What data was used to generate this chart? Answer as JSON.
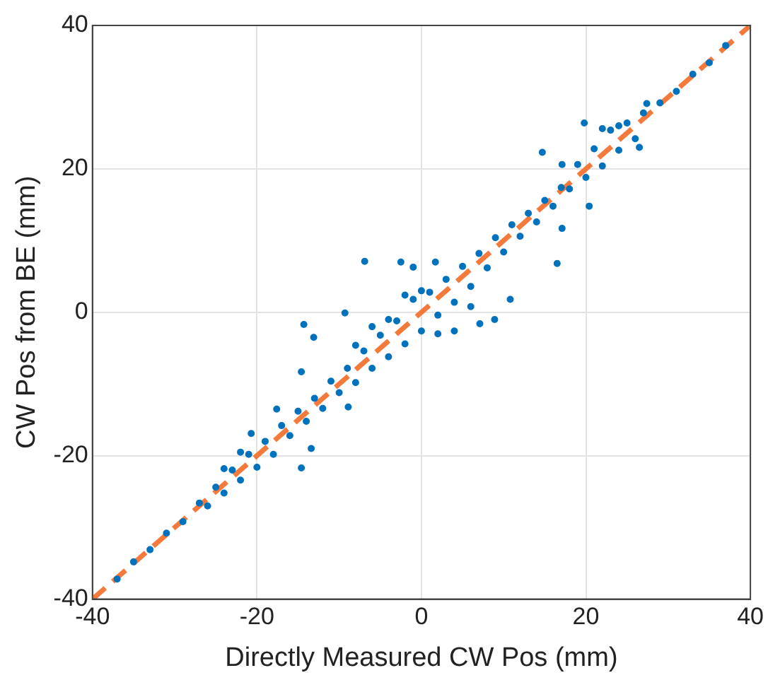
{
  "chart_data": {
    "type": "scatter",
    "xlabel": "Directly Measured CW Pos (mm)",
    "ylabel": "CW Pos from BE (mm)",
    "xlim": [
      -40,
      40
    ],
    "ylim": [
      -40,
      40
    ],
    "xticks": [
      -40,
      -20,
      0,
      20,
      40
    ],
    "yticks": [
      -40,
      -20,
      0,
      20,
      40
    ],
    "grid": true,
    "legend": false,
    "marker": "circle",
    "series": [
      {
        "color": "#0072bd",
        "x": [
          -37,
          -35,
          -33,
          -31,
          -29,
          -27,
          -26,
          -25,
          -24,
          -23,
          -22,
          -21,
          -20,
          -19,
          -18,
          -17,
          -16,
          -15,
          -14,
          -13,
          -12,
          -11,
          -10,
          -9,
          -8,
          -7,
          -6,
          -5,
          -4,
          -3,
          -2,
          -1,
          0,
          1,
          2,
          3,
          4,
          5,
          6,
          7,
          8,
          9,
          10,
          11,
          12,
          13,
          14,
          15,
          16,
          17,
          18,
          19,
          20,
          21,
          22,
          23,
          24,
          25,
          26,
          27,
          29,
          31,
          33,
          35,
          37,
          -22,
          -24,
          22,
          24,
          -6,
          -4,
          -2,
          2,
          4,
          0,
          -8,
          6,
          -6.9,
          -2.5,
          -1,
          1.7,
          -9.3,
          -14.3,
          -13.1,
          -14.6,
          -14.6,
          -13.4,
          -17.6,
          -20.7,
          14.7,
          17.1,
          19.8,
          20.4,
          16.5,
          17.1,
          10.8,
          8.9,
          7.1,
          -8.9,
          27.4,
          26.5
        ],
        "values": [
          -37.2,
          -34.8,
          -33.1,
          -30.8,
          -29.2,
          -26.6,
          -27,
          -24.4,
          -25.2,
          -22,
          -23.4,
          -19.8,
          -21.6,
          -18,
          -19.8,
          -15.8,
          -17.2,
          -13.8,
          -15.2,
          -12,
          -13.4,
          -9.6,
          -11.2,
          -7.8,
          -9.8,
          -5.4,
          -7.8,
          -3.2,
          -6.2,
          -1.2,
          -4.4,
          1.8,
          -2.6,
          2.8,
          -0.4,
          4.6,
          1.4,
          6.4,
          3.6,
          8.2,
          6.2,
          10.4,
          8.4,
          12.2,
          10.6,
          13.8,
          12.6,
          15.6,
          14.8,
          17.4,
          17.2,
          20.6,
          18.8,
          22.8,
          20.4,
          25.4,
          22.6,
          26.4,
          24.2,
          27.8,
          29.2,
          30.8,
          33.2,
          34.8,
          37.2,
          -19.5,
          -21.8,
          25.6,
          26,
          -2,
          -1,
          2.4,
          -3,
          -2.6,
          3,
          -4.6,
          0.8,
          7.1,
          7,
          6.3,
          7,
          -0.1,
          -1.7,
          -3.5,
          -8.3,
          -21.7,
          -19,
          -13.5,
          -16.9,
          22.3,
          20.6,
          26.4,
          14.8,
          6.8,
          11.7,
          1.8,
          -1,
          -1.6,
          -13.2,
          29.1,
          23
        ]
      },
      {
        "type": "line",
        "color": "#f47a3c",
        "line_style": "dashed",
        "marker": "none",
        "x": [
          -40,
          40
        ],
        "values": [
          -40,
          40
        ]
      }
    ]
  }
}
